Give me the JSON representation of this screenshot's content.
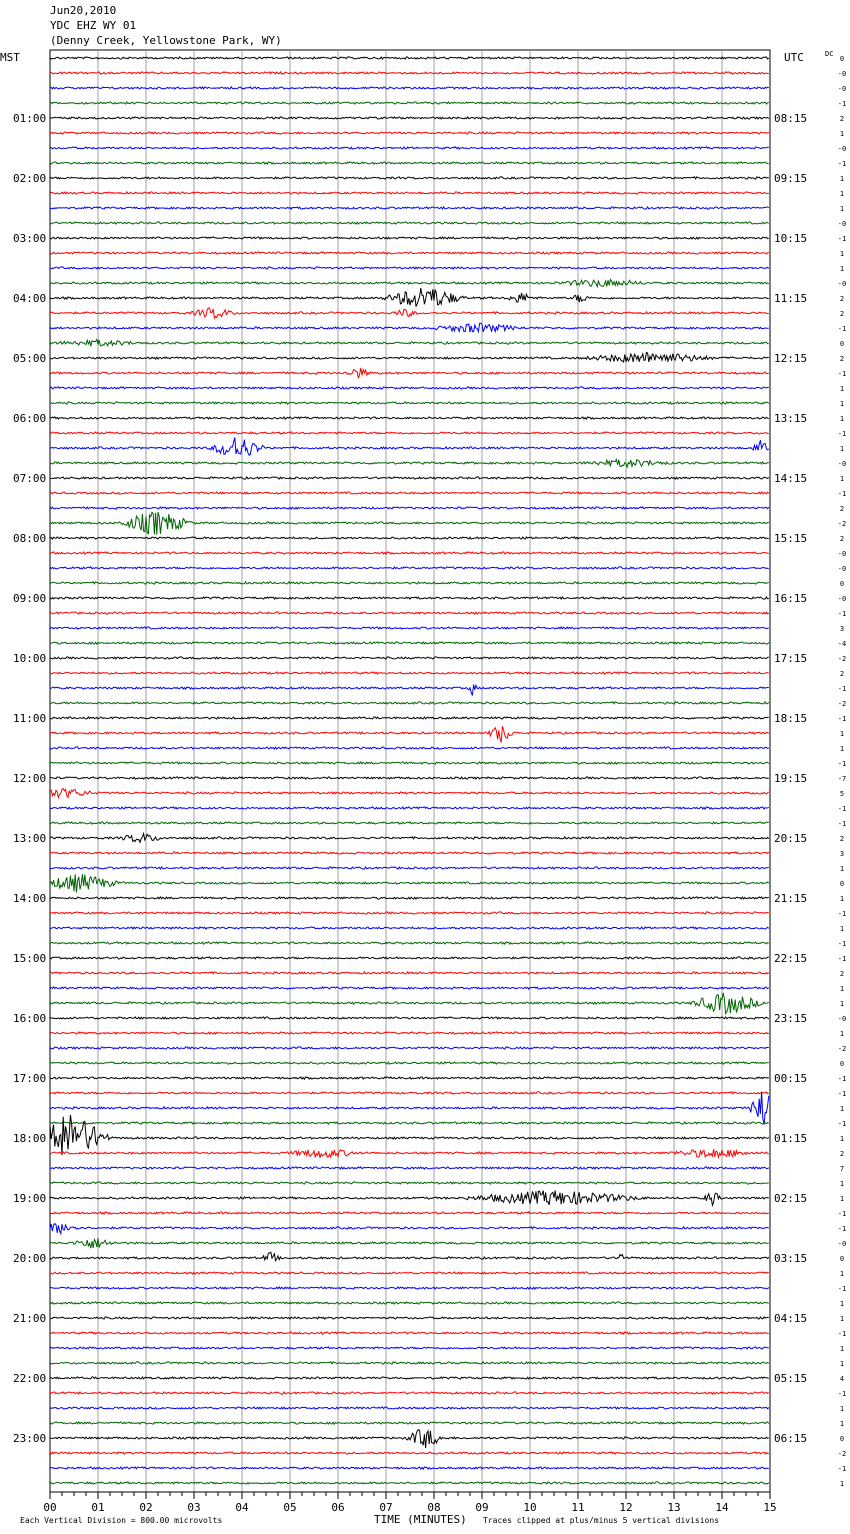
{
  "header": {
    "date": "Jun20,2010",
    "station": "YDC EHZ WY 01",
    "location": "(Denny Creek, Yellowstone Park, WY)"
  },
  "left_axis_title": "MST",
  "right_axis_title": "UTC",
  "dc_title": "DC",
  "footer": {
    "vertical_division": "Each Vertical Division =  800.00 microvolts",
    "x_axis_title": "TIME (MINUTES)",
    "clip_note": "Traces clipped at plus/minus 5 vertical divisions"
  },
  "chart_data": {
    "type": "line",
    "title": "YDC EHZ WY 01",
    "xlabel": "TIME (MINUTES)",
    "xlim": [
      0,
      15
    ],
    "x_ticks": [
      "00",
      "01",
      "02",
      "03",
      "04",
      "05",
      "06",
      "07",
      "08",
      "09",
      "10",
      "11",
      "12",
      "13",
      "14",
      "15"
    ],
    "trace_colors": [
      "#000000",
      "#ff0000",
      "#0000ff",
      "#006400"
    ],
    "trace_minutes_each": 15,
    "left_labels": [
      "01:00",
      "02:00",
      "03:00",
      "04:00",
      "05:00",
      "06:00",
      "07:00",
      "08:00",
      "09:00",
      "10:00",
      "11:00",
      "12:00",
      "13:00",
      "14:00",
      "15:00",
      "16:00",
      "17:00",
      "18:00",
      "19:00",
      "20:00",
      "21:00",
      "22:00",
      "23:00"
    ],
    "right_labels": [
      "08:15",
      "09:15",
      "10:15",
      "11:15",
      "12:15",
      "13:15",
      "14:15",
      "15:15",
      "16:15",
      "17:15",
      "18:15",
      "19:15",
      "20:15",
      "21:15",
      "22:15",
      "23:15",
      "00:15",
      "01:15",
      "02:15",
      "03:15",
      "04:15",
      "05:15",
      "06:15"
    ],
    "dc_offsets": [
      "0",
      "-0",
      "-0",
      "-1",
      "2",
      "1",
      "-0",
      "-1",
      "1",
      "1",
      "1",
      "-0",
      "-1",
      "1",
      "1",
      "-0",
      "2",
      "2",
      "-1",
      "0",
      "2",
      "-1",
      "1",
      "1",
      "1",
      "-1",
      "1",
      "-0",
      "1",
      "-1",
      "2",
      "-2",
      "2",
      "-0",
      "-0",
      "0",
      "-0",
      "-1",
      "3",
      "-4",
      "-2",
      "2",
      "-1",
      "-2",
      "-1",
      "1",
      "1",
      "-1",
      "-7",
      "5",
      "-1",
      "-1",
      "2",
      "3",
      "1",
      "0",
      "1",
      "-1",
      "1",
      "-1",
      "-1",
      "2",
      "1",
      "1",
      "-0",
      "1",
      "-2",
      "0",
      "-1",
      "-1",
      "1",
      "-1",
      "1",
      "2",
      "7",
      "1",
      "1",
      "-1",
      "-1",
      "-0",
      "0",
      "1",
      "-1",
      "1",
      "1",
      "-1",
      "1",
      "1",
      "4",
      "-1",
      "1",
      "1",
      "0",
      "-2",
      "-1",
      "1"
    ],
    "events": [
      {
        "trace": 16,
        "minute": 7.8,
        "amp": 1.3,
        "dur": 0.9
      },
      {
        "trace": 16,
        "minute": 9.8,
        "amp": 0.6,
        "dur": 0.3
      },
      {
        "trace": 16,
        "minute": 11.05,
        "amp": 0.5,
        "dur": 0.2
      },
      {
        "trace": 17,
        "minute": 3.4,
        "amp": 0.6,
        "dur": 0.5
      },
      {
        "trace": 17,
        "minute": 7.4,
        "amp": 0.4,
        "dur": 0.3
      },
      {
        "trace": 18,
        "minute": 8.9,
        "amp": 0.5,
        "dur": 1.0
      },
      {
        "trace": 15,
        "minute": 11.5,
        "amp": 0.4,
        "dur": 1.0
      },
      {
        "trace": 19,
        "minute": 1.0,
        "amp": 0.3,
        "dur": 1.0
      },
      {
        "trace": 20,
        "minute": 12.5,
        "amp": 0.6,
        "dur": 1.5
      },
      {
        "trace": 21,
        "minute": 6.4,
        "amp": 0.6,
        "dur": 0.3
      },
      {
        "trace": 26,
        "minute": 3.9,
        "amp": 1.4,
        "dur": 0.6
      },
      {
        "trace": 26,
        "minute": 14.8,
        "amp": 0.8,
        "dur": 0.2
      },
      {
        "trace": 27,
        "minute": 12.0,
        "amp": 0.4,
        "dur": 1.0
      },
      {
        "trace": 31,
        "minute": 2.2,
        "amp": 1.4,
        "dur": 0.8
      },
      {
        "trace": 42,
        "minute": 8.8,
        "amp": 0.8,
        "dur": 0.1
      },
      {
        "trace": 45,
        "minute": 9.4,
        "amp": 1.0,
        "dur": 0.3
      },
      {
        "trace": 49,
        "minute": 0.3,
        "amp": 0.5,
        "dur": 0.7
      },
      {
        "trace": 52,
        "minute": 1.9,
        "amp": 0.5,
        "dur": 0.5
      },
      {
        "trace": 55,
        "minute": 0.6,
        "amp": 1.0,
        "dur": 0.9
      },
      {
        "trace": 63,
        "minute": 14.1,
        "amp": 1.2,
        "dur": 0.8
      },
      {
        "trace": 70,
        "minute": 14.85,
        "amp": 2.6,
        "dur": 0.3
      },
      {
        "trace": 72,
        "minute": 0.4,
        "amp": 2.8,
        "dur": 0.9
      },
      {
        "trace": 73,
        "minute": 5.7,
        "amp": 0.5,
        "dur": 0.8
      },
      {
        "trace": 73,
        "minute": 13.8,
        "amp": 0.5,
        "dur": 1.0
      },
      {
        "trace": 76,
        "minute": 10.5,
        "amp": 0.8,
        "dur": 2.0
      },
      {
        "trace": 76,
        "minute": 13.8,
        "amp": 0.8,
        "dur": 0.2
      },
      {
        "trace": 78,
        "minute": 0.2,
        "amp": 0.6,
        "dur": 0.5
      },
      {
        "trace": 79,
        "minute": 0.9,
        "amp": 0.6,
        "dur": 0.5
      },
      {
        "trace": 80,
        "minute": 4.6,
        "amp": 0.6,
        "dur": 0.2
      },
      {
        "trace": 80,
        "minute": 11.9,
        "amp": 1.0,
        "dur": 0.1
      },
      {
        "trace": 92,
        "minute": 7.8,
        "amp": 1.2,
        "dur": 0.4
      }
    ]
  }
}
